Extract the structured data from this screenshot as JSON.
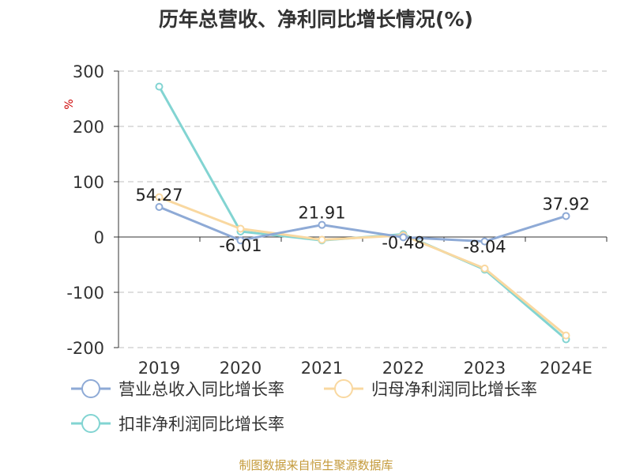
{
  "chart_data": {
    "type": "line",
    "title": "历年总营收、净利同比增长情况(%)",
    "unit_label": "%",
    "categories": [
      "2019",
      "2020",
      "2021",
      "2022",
      "2023",
      "2024E"
    ],
    "ylim": [
      -200,
      300
    ],
    "yticks": [
      300,
      200,
      100,
      0,
      -100,
      -200
    ],
    "ytick_labels": [
      "300",
      "200",
      "100",
      "0",
      "-100",
      "-200"
    ],
    "grid": true,
    "legend_position": "bottom",
    "series": [
      {
        "name": "营业总收入同比增长率",
        "color": "#8eaad6",
        "values": [
          54.27,
          -6.01,
          21.91,
          -0.48,
          -8.04,
          37.92
        ],
        "data_labels": [
          "54.27",
          "-6.01",
          "21.91",
          "-0.48",
          "-8.04",
          "37.92"
        ]
      },
      {
        "name": "归母净利润同比增长率",
        "color": "#f9d8a0",
        "values": [
          72,
          15,
          -5,
          3,
          -57,
          -178
        ]
      },
      {
        "name": "扣非净利润同比增长率",
        "color": "#82d4d2",
        "values": [
          272,
          10,
          -6,
          5,
          -59,
          -185
        ]
      }
    ]
  },
  "source_text": "制图数据来自恒生聚源数据库"
}
